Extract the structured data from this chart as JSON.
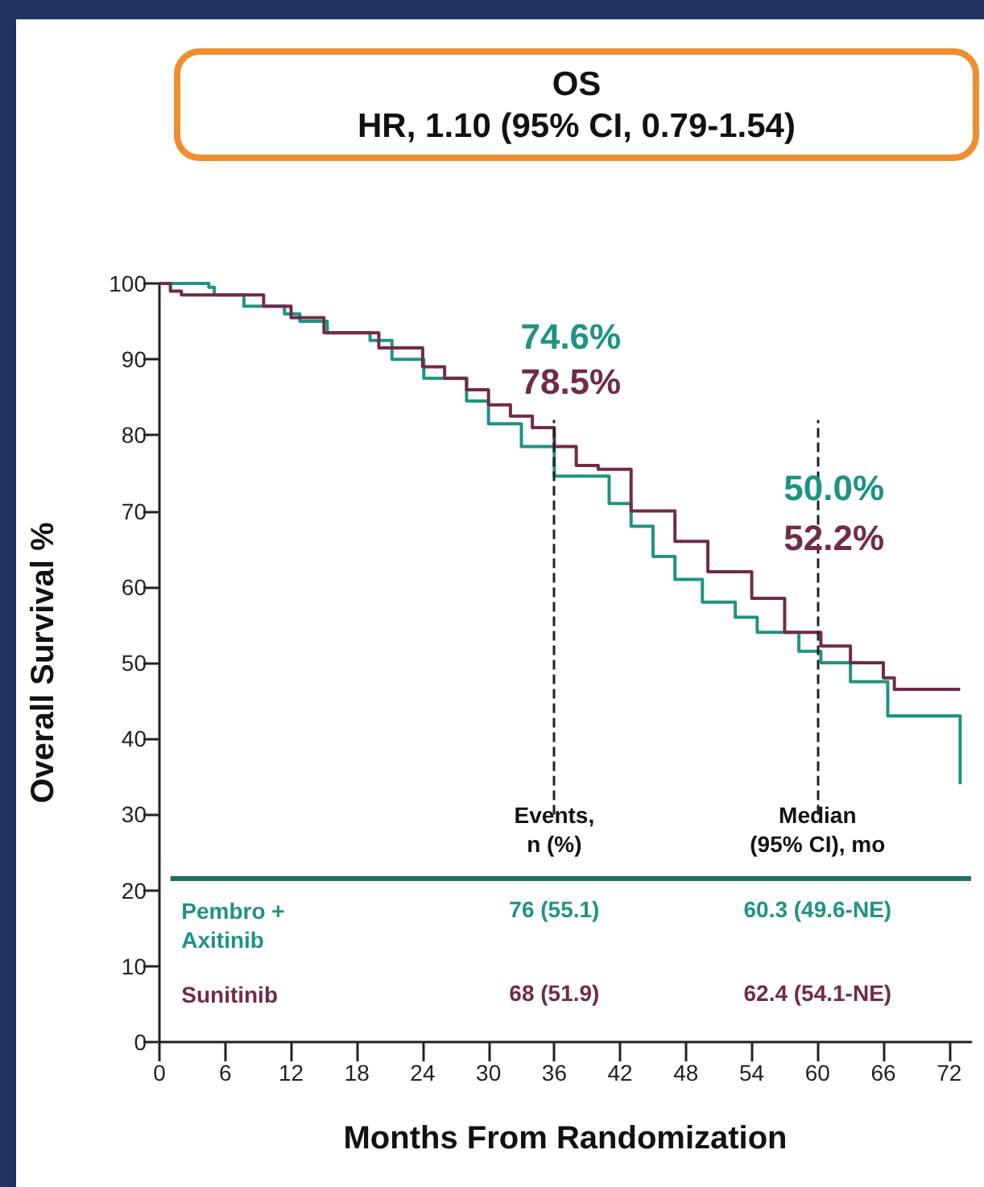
{
  "chart_data": {
    "type": "step",
    "title": "OS",
    "subtitle": "HR, 1.10 (95% CI, 0.79-1.54)",
    "xlabel": "Months From Randomization",
    "ylabel": "Overall Survival %",
    "xlim": [
      0,
      74
    ],
    "xticks": [
      0,
      6,
      12,
      18,
      24,
      30,
      36,
      42,
      48,
      54,
      60,
      66,
      72
    ],
    "ylim": [
      0,
      100
    ],
    "yticks": [
      0,
      10,
      20,
      30,
      40,
      50,
      60,
      70,
      80,
      90,
      100
    ],
    "grid": false,
    "legend": false,
    "marker": "none",
    "line_style": "solid",
    "series": [
      {
        "name": "Pembro + Axitinib",
        "color": "#1f9383",
        "x": [
          0,
          4.5,
          5,
          7.7,
          11.4,
          12.8,
          15.3,
          19.2,
          21.2,
          24.1,
          28,
          30,
          33,
          36,
          41,
          43,
          45,
          47,
          49.5,
          52.5,
          54.5,
          58.3,
          60.3,
          63,
          66.4,
          73,
          73
        ],
        "values": [
          100,
          99.5,
          98.5,
          97,
          96,
          95,
          93.5,
          92.5,
          90,
          87.5,
          84.5,
          81.5,
          78.5,
          74.6,
          71,
          68,
          64,
          61,
          58,
          56,
          54,
          51.5,
          50,
          47.5,
          43,
          43,
          34
        ]
      },
      {
        "name": "Sunitinib",
        "color": "#722a48",
        "x": [
          0,
          1,
          2,
          9,
          9.5,
          12,
          15,
          20,
          24,
          26,
          28,
          30,
          32,
          34,
          36,
          38,
          40,
          43,
          47,
          50,
          54,
          57,
          60.3,
          63,
          66,
          67,
          73
        ],
        "values": [
          100,
          99,
          98.5,
          98.5,
          97,
          95.5,
          93.5,
          91.5,
          89,
          87.5,
          86,
          84,
          82.5,
          81,
          78.5,
          76,
          75.5,
          70,
          66,
          62,
          58.5,
          54,
          52.2,
          50,
          48,
          46.5,
          46.5
        ]
      }
    ],
    "ref_lines": [
      {
        "axis": "x",
        "value": 36,
        "color": "#222222",
        "line_style": "dashed"
      },
      {
        "axis": "x",
        "value": 60,
        "color": "#222222",
        "line_style": "dashed"
      },
      {
        "axis": "y",
        "value": 21.5,
        "color": "#1d6e63",
        "line_style": "solid"
      }
    ],
    "annotations": [
      "74.6%",
      "78.5%",
      "50.0%",
      "52.2%",
      "Events,\nn (%)",
      "Median\n(95% CI), mo",
      "76 (55.1)",
      "60.3 (49.6-NE)",
      "68 (51.9)",
      "62.4 (54.1-NE)"
    ]
  }
}
